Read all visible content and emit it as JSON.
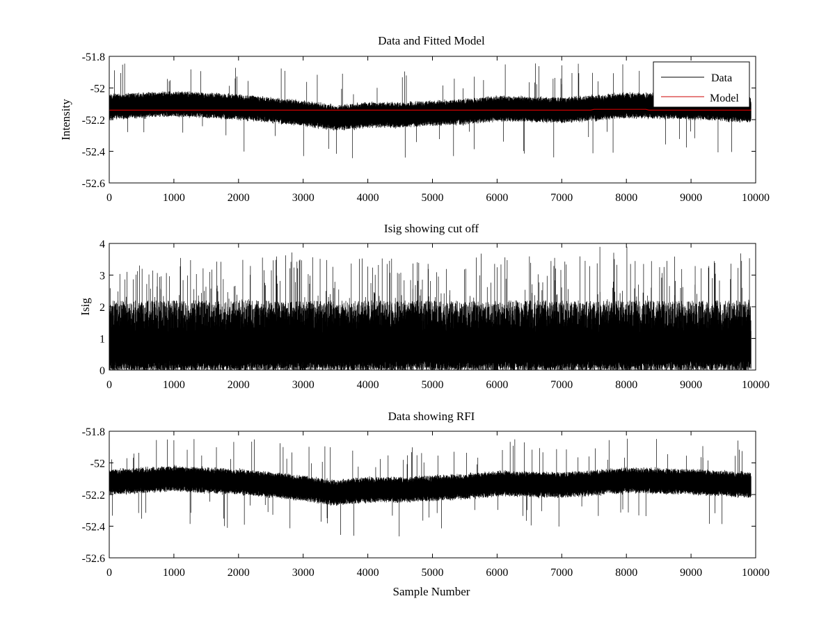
{
  "chart_data": [
    {
      "type": "line",
      "title": "Data and Fitted Model",
      "xlabel": "",
      "ylabel": "Intensity",
      "xlim": [
        0,
        10000
      ],
      "ylim": [
        -52.6,
        -51.8
      ],
      "xticks": [
        0,
        1000,
        2000,
        3000,
        4000,
        5000,
        6000,
        7000,
        8000,
        9000,
        10000
      ],
      "yticks": [
        -51.8,
        -52,
        -52.2,
        -52.4,
        -52.6
      ],
      "xtick_labels": [
        "0",
        "1000",
        "2000",
        "3000",
        "4000",
        "5000",
        "6000",
        "7000",
        "8000",
        "9000",
        "10000"
      ],
      "ytick_labels": [
        "-51.8",
        "-52",
        "-52.2",
        "-52.4",
        "-52.6"
      ],
      "grid": false,
      "legend": {
        "placement": "top-right",
        "entries": [
          "Data",
          "Model"
        ]
      },
      "series": [
        {
          "name": "Data",
          "color": "#000000",
          "style": "dense-noise",
          "n_samples": 9930,
          "mean_envelope": [
            [
              0,
              -52.12
            ],
            [
              1000,
              -52.1
            ],
            [
              2000,
              -52.12
            ],
            [
              3000,
              -52.16
            ],
            [
              3500,
              -52.19
            ],
            [
              4000,
              -52.17
            ],
            [
              4500,
              -52.17
            ],
            [
              5000,
              -52.16
            ],
            [
              5500,
              -52.15
            ],
            [
              6000,
              -52.13
            ],
            [
              7000,
              -52.14
            ],
            [
              8000,
              -52.11
            ],
            [
              9000,
              -52.12
            ],
            [
              9930,
              -52.14
            ]
          ],
          "band_halfwidth": 0.075,
          "spike_extremes": {
            "max": -51.85,
            "min": -52.47
          }
        },
        {
          "name": "Model",
          "color": "#cc0000",
          "x": [
            0,
            7450,
            7500,
            8300,
            8350,
            9930
          ],
          "y": [
            -52.14,
            -52.14,
            -52.135,
            -52.135,
            -52.14,
            -52.14
          ]
        }
      ]
    },
    {
      "type": "line",
      "title": "Isig showing cut off",
      "xlabel": "",
      "ylabel": "Isig",
      "xlim": [
        0,
        10000
      ],
      "ylim": [
        0,
        4
      ],
      "xticks": [
        0,
        1000,
        2000,
        3000,
        4000,
        5000,
        6000,
        7000,
        8000,
        9000,
        10000
      ],
      "yticks": [
        0,
        1,
        2,
        3,
        4
      ],
      "xtick_labels": [
        "0",
        "1000",
        "2000",
        "3000",
        "4000",
        "5000",
        "6000",
        "7000",
        "8000",
        "9000",
        "10000"
      ],
      "ytick_labels": [
        "0",
        "1",
        "2",
        "3",
        "4"
      ],
      "grid": false,
      "series": [
        {
          "color": "#000000",
          "style": "dense-noise-positive",
          "n_samples": 9930,
          "mean_level": 0.8,
          "typical_max": 2.2,
          "spike_extremes": {
            "max": 4.0,
            "min": 0.0
          }
        }
      ]
    },
    {
      "type": "line",
      "title": "Data showing RFI",
      "xlabel": "Sample Number",
      "ylabel": "",
      "xlim": [
        0,
        10000
      ],
      "ylim": [
        -52.6,
        -51.8
      ],
      "xticks": [
        0,
        1000,
        2000,
        3000,
        4000,
        5000,
        6000,
        7000,
        8000,
        9000,
        10000
      ],
      "yticks": [
        -51.8,
        -52,
        -52.2,
        -52.4,
        -52.6
      ],
      "xtick_labels": [
        "0",
        "1000",
        "2000",
        "3000",
        "4000",
        "5000",
        "6000",
        "7000",
        "8000",
        "9000",
        "10000"
      ],
      "ytick_labels": [
        "-51.8",
        "-52",
        "-52.2",
        "-52.4",
        "-52.6"
      ],
      "grid": false,
      "series": [
        {
          "color": "#000000",
          "style": "dense-noise",
          "n_samples": 9930,
          "mean_envelope": [
            [
              0,
              -52.12
            ],
            [
              1000,
              -52.1
            ],
            [
              2000,
              -52.12
            ],
            [
              3000,
              -52.16
            ],
            [
              3500,
              -52.19
            ],
            [
              4000,
              -52.17
            ],
            [
              4500,
              -52.17
            ],
            [
              5000,
              -52.16
            ],
            [
              5500,
              -52.15
            ],
            [
              6000,
              -52.13
            ],
            [
              7000,
              -52.14
            ],
            [
              8000,
              -52.11
            ],
            [
              9000,
              -52.12
            ],
            [
              9930,
              -52.14
            ]
          ],
          "band_halfwidth": 0.075,
          "spike_extremes": {
            "max": -51.85,
            "min": -52.47
          }
        }
      ]
    }
  ]
}
